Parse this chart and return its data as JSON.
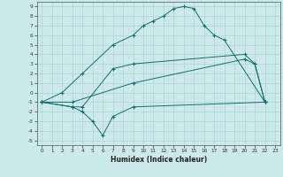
{
  "xlabel": "Humidex (Indice chaleur)",
  "xlim": [
    -0.5,
    23.5
  ],
  "ylim": [
    -5.5,
    9.5
  ],
  "xticks": [
    0,
    1,
    2,
    3,
    4,
    5,
    6,
    7,
    8,
    9,
    10,
    11,
    12,
    13,
    14,
    15,
    16,
    17,
    18,
    19,
    20,
    21,
    22,
    23
  ],
  "yticks": [
    -5,
    -4,
    -3,
    -2,
    -1,
    0,
    1,
    2,
    3,
    4,
    5,
    6,
    7,
    8,
    9
  ],
  "bg_color": "#cceaea",
  "line_color": "#1a6b6b",
  "grid_color": "#aad4d4",
  "series": [
    {
      "x": [
        0,
        2,
        4,
        7,
        9,
        10,
        11,
        12,
        13,
        14,
        15,
        16,
        17,
        18,
        22
      ],
      "y": [
        -1,
        0,
        2,
        5,
        6,
        7,
        7.5,
        8,
        8.8,
        9,
        8.8,
        7,
        6,
        5.5,
        -1
      ]
    },
    {
      "x": [
        0,
        3,
        4,
        7,
        9,
        20,
        21,
        22
      ],
      "y": [
        -1,
        -1.5,
        -1.5,
        2.5,
        3,
        4,
        3,
        -1
      ]
    },
    {
      "x": [
        0,
        3,
        9,
        20,
        21,
        22
      ],
      "y": [
        -1,
        -1,
        1,
        3.5,
        3,
        -1
      ]
    },
    {
      "x": [
        0,
        3,
        4,
        5,
        6,
        7,
        9,
        22
      ],
      "y": [
        -1,
        -1.5,
        -2,
        -3,
        -4.5,
        -2.5,
        -1.5,
        -1
      ]
    }
  ]
}
